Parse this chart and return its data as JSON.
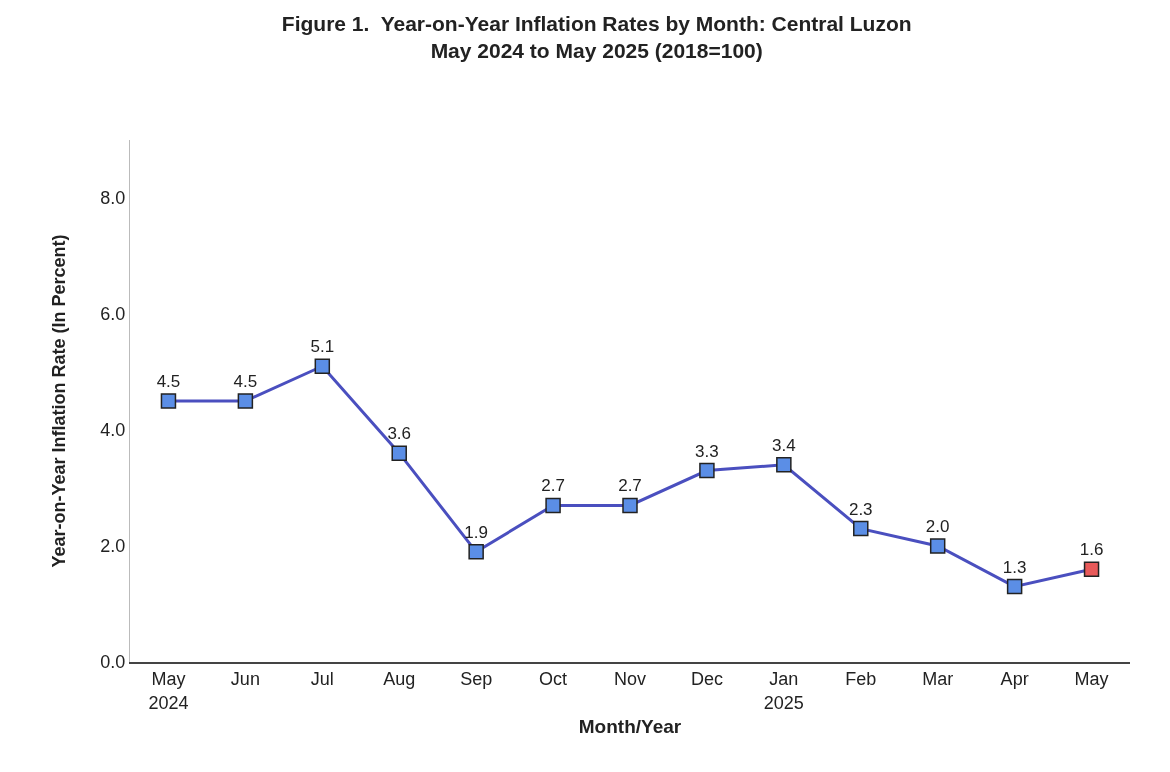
{
  "chart_data": {
    "type": "line",
    "title": "Figure 1.  Year-on-Year Inflation Rates by Month: Central Luzon\nMay 2024 to May 2025 (2018=100)",
    "xlabel": "Month/Year",
    "ylabel": "Year-on-Year Inflation Rate (In Percent)",
    "categories": [
      "May\n2024",
      "Jun",
      "Jul",
      "Aug",
      "Sep",
      "Oct",
      "Nov",
      "Dec",
      "Jan\n2025",
      "Feb",
      "Mar",
      "Apr",
      "May"
    ],
    "series": [
      {
        "color": "#4a4fbf",
        "values": [
          4.5,
          4.5,
          5.1,
          3.6,
          1.9,
          2.7,
          2.7,
          3.3,
          3.4,
          2.3,
          2.0,
          1.3,
          1.6
        ],
        "value_labels": [
          "4.5",
          "4.5",
          "5.1",
          "3.6",
          "1.9",
          "2.7",
          "2.7",
          "3.3",
          "3.4",
          "2.3",
          "2.0",
          "1.3",
          "1.6"
        ],
        "colors": [
          "#5b8ee6",
          "#5b8ee6",
          "#5b8ee6",
          "#5b8ee6",
          "#5b8ee6",
          "#5b8ee6",
          "#5b8ee6",
          "#5b8ee6",
          "#5b8ee6",
          "#5b8ee6",
          "#5b8ee6",
          "#5b8ee6",
          "#e85a5a"
        ]
      }
    ],
    "ylim": [
      0,
      9
    ],
    "yticks": [
      {
        "value": 0,
        "label": "0.0"
      },
      {
        "value": 2,
        "label": "2.0"
      },
      {
        "value": 4,
        "label": "4.0"
      },
      {
        "value": 6,
        "label": "6.0"
      },
      {
        "value": 8,
        "label": "8.0"
      }
    ],
    "marker": "square",
    "line_style": "solid",
    "grid": false
  }
}
